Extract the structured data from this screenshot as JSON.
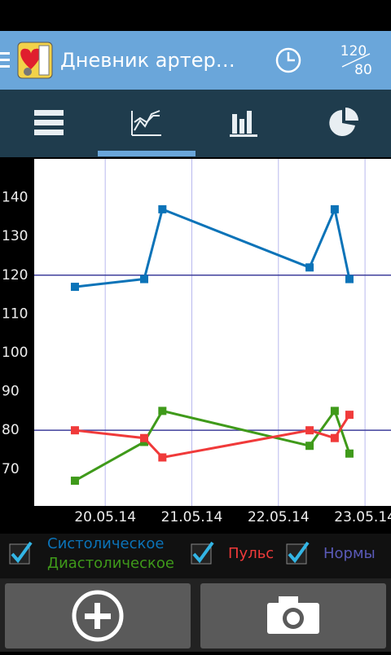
{
  "app_bar": {
    "title": "Дневник артер…",
    "norm_badge": {
      "top": "120",
      "bottom": "80"
    }
  },
  "chart_data": {
    "type": "line",
    "x": [
      -0.35,
      0.45,
      0.66,
      2.36,
      2.65,
      2.82
    ],
    "xlim": [
      -0.82,
      3.3
    ],
    "xticks": [
      {
        "value": 0,
        "label": "20.05.14"
      },
      {
        "value": 1,
        "label": "21.05.14"
      },
      {
        "value": 2,
        "label": "22.05.14"
      },
      {
        "value": 3,
        "label": "23.05.14"
      }
    ],
    "ylim": [
      60.5,
      150
    ],
    "yticks": [
      70,
      80,
      90,
      100,
      110,
      120,
      130,
      140
    ],
    "grid": "x",
    "norms": [
      120,
      80
    ],
    "norms_label": "Нормы",
    "norms_color": "#3f3f9c",
    "series": [
      {
        "name": "Систолическое",
        "color": "#0b73b8",
        "values": [
          117,
          119,
          137,
          122,
          137,
          119
        ]
      },
      {
        "name": "Диастолическое",
        "color": "#3f9a1a",
        "values": [
          67,
          77,
          85,
          76,
          85,
          74
        ]
      },
      {
        "name": "Пульс",
        "color": "#f03a3a",
        "values": [
          80,
          78,
          73,
          80,
          78,
          84
        ]
      }
    ]
  }
}
